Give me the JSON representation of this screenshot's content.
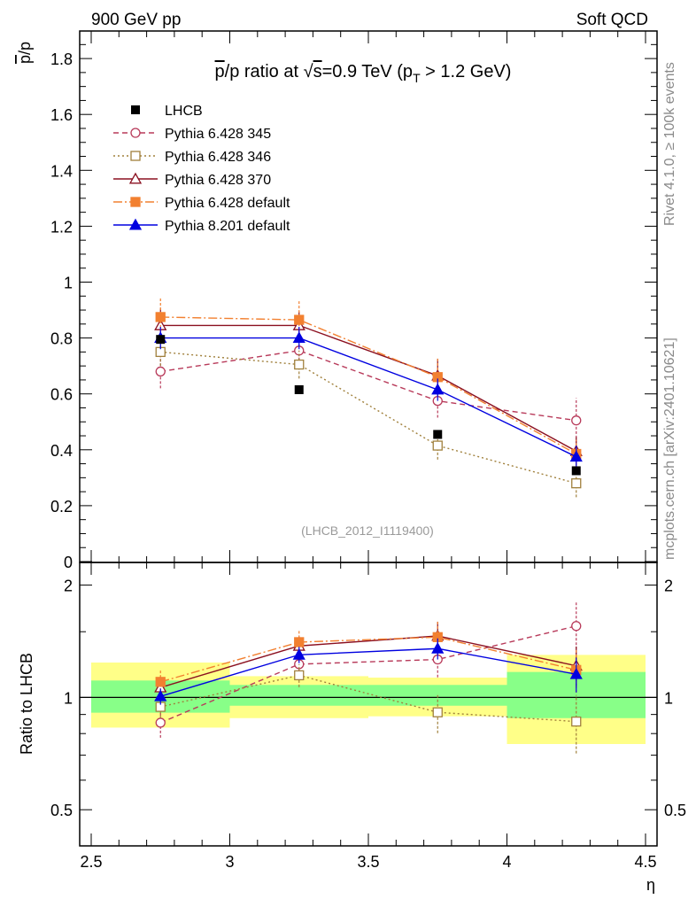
{
  "header": {
    "left": "900 GeV pp",
    "right": "Soft QCD"
  },
  "side_labels": {
    "upper": "Rivet 4.1.0, ≥ 100k events",
    "lower": "mcplots.cern.ch [arXiv:2401.10621]"
  },
  "chart_data": {
    "type": "line",
    "title_parts": {
      "pbar": "p",
      "mid": "/p ratio at √",
      "s": "s",
      "energy": "=0.9 TeV (p",
      "sub": "T",
      "cut": " > 1.2 GeV)"
    },
    "ylabel_upper": {
      "num": "p",
      "rest": "/p"
    },
    "ylabel_lower": "Ratio to LHCB",
    "xlabel": "η",
    "reference_tag": "(LHCB_2012_I1119400)",
    "xlim": [
      2.5,
      4.5
    ],
    "ylim_upper": [
      0,
      1.9
    ],
    "ylim_lower_log": [
      0.4,
      2.3
    ],
    "x_ticks": [
      "2.5",
      "3",
      "3.5",
      "4",
      "4.5"
    ],
    "y_ticks_upper": [
      "0",
      "0.2",
      "0.4",
      "0.6",
      "0.8",
      "1",
      "1.2",
      "1.4",
      "1.6",
      "1.8"
    ],
    "y_ticks_lower": [
      "0.5",
      "1",
      "2"
    ],
    "bins": [
      [
        2.5,
        3.0
      ],
      [
        3.0,
        3.5
      ],
      [
        3.5,
        4.0
      ],
      [
        4.0,
        4.5
      ]
    ],
    "x": [
      2.75,
      3.25,
      3.75,
      4.25
    ],
    "data": {
      "name": "LHCB",
      "values": [
        0.795,
        0.615,
        0.455,
        0.325
      ],
      "color": "#000000"
    },
    "band_inner": [
      [
        0.91,
        1.11
      ],
      [
        0.95,
        1.08
      ],
      [
        0.95,
        1.08
      ],
      [
        0.88,
        1.17
      ]
    ],
    "band_outer": [
      [
        0.83,
        1.24
      ],
      [
        0.88,
        1.14
      ],
      [
        0.89,
        1.13
      ],
      [
        0.75,
        1.3
      ]
    ],
    "series": [
      {
        "name": "Pythia 6.428 345",
        "values": [
          0.68,
          0.755,
          0.575,
          0.505
        ],
        "errors": [
          0.06,
          0.05,
          0.06,
          0.08
        ],
        "color": "#b83a5a",
        "dash": "6,4",
        "marker": "circle",
        "filled": false
      },
      {
        "name": "Pythia 6.428 346",
        "values": [
          0.75,
          0.705,
          0.415,
          0.28
        ],
        "errors": [
          0.05,
          0.05,
          0.05,
          0.05
        ],
        "color": "#a0803c",
        "dash": "2,3",
        "marker": "square",
        "filled": false
      },
      {
        "name": "Pythia 6.428 370",
        "values": [
          0.845,
          0.845,
          0.665,
          0.395
        ],
        "errors": [
          0.06,
          0.05,
          0.06,
          0.05
        ],
        "color": "#8b1020",
        "dash": "",
        "marker": "triangle",
        "filled": false
      },
      {
        "name": "Pythia 6.428 default",
        "values": [
          0.875,
          0.865,
          0.66,
          0.385
        ],
        "errors": [
          0.07,
          0.07,
          0.07,
          0.05
        ],
        "color": "#f28030",
        "dash": "10,3,2,3",
        "marker": "square",
        "filled": true
      },
      {
        "name": "Pythia 8.201 default",
        "values": [
          0.8,
          0.8,
          0.615,
          0.375
        ],
        "errors": [
          0.04,
          0.04,
          0.04,
          0.04
        ],
        "color": "#0000e0",
        "dash": "",
        "marker": "triangle",
        "filled": true
      }
    ]
  }
}
